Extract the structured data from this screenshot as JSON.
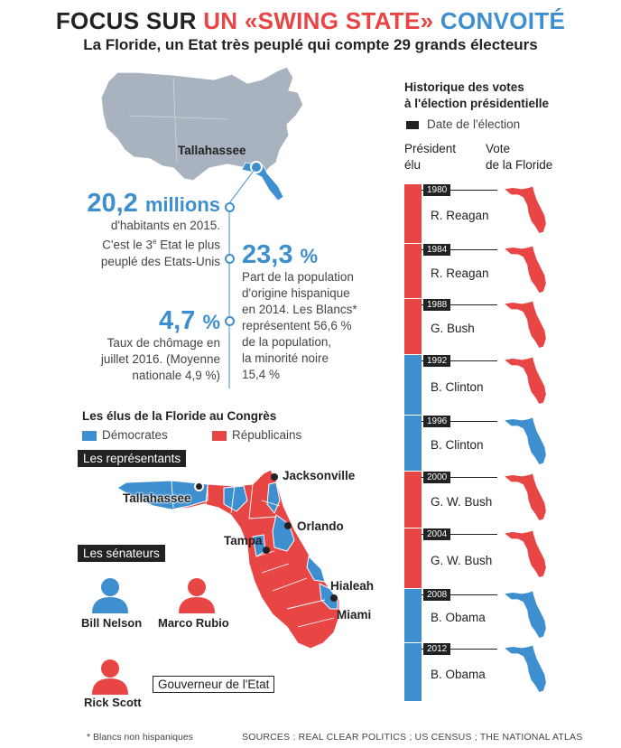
{
  "header": {
    "title_part1": "FOCUS SUR ",
    "title_part2": "UN «SWING STATE»",
    "title_part3": " CONVOITÉ",
    "subtitle": "La Floride, un Etat très peuplé qui compte 29 grands électeurs"
  },
  "colors": {
    "democrat": "#3d8fd0",
    "republican": "#e84545",
    "us_map": "#a9b3bf",
    "dark": "#222222"
  },
  "top_map": {
    "capital_label": "Tallahassee"
  },
  "stats": {
    "population": {
      "value": "20,2",
      "unit": "millions",
      "line1": "d'habitants en 2015.",
      "line2_prefix": "C'est le 3",
      "line2_sup": "e",
      "line2_suffix": " Etat le plus",
      "line3": "peuplé des Etats-Unis"
    },
    "hispanic": {
      "value": "23,3",
      "unit": "%",
      "lines": [
        "Part de la population",
        "d'origine hispanique",
        "en 2014. Les Blancs*",
        "représentent 56,6 %",
        "de la population,",
        "la minorité noire",
        "15,4 %"
      ]
    },
    "unemployment": {
      "value": "4,7",
      "unit": "%",
      "lines": [
        "Taux de chômage en",
        "juillet 2016. (Moyenne",
        "nationale 4,9 %)"
      ]
    }
  },
  "congress": {
    "title": "Les élus de la Floride au Congrès",
    "legend": {
      "democrats": "Démocrates",
      "republicans": "Républicains"
    },
    "representatives_label": "Les représentants",
    "senators_label": "Les sénateurs",
    "senators": [
      {
        "name": "Bill Nelson",
        "party": "democrat",
        "icon": "person-icon"
      },
      {
        "name": "Marco Rubio",
        "party": "republican",
        "icon": "person-icon"
      }
    ],
    "governor": {
      "name": "Rick Scott",
      "party": "republican",
      "label": "Gouverneur de l'Etat"
    },
    "cities": [
      "Jacksonville",
      "Tallahassee",
      "Orlando",
      "Tampa",
      "Hialeah",
      "Miami"
    ]
  },
  "history": {
    "title_line1": "Historique des votes",
    "title_line2": "à l'élection présidentielle",
    "legend_date": "Date de l'élection",
    "col_president_line1": "Président",
    "col_president_line2": "élu",
    "col_vote_line1": "Vote",
    "col_vote_line2": "de la Floride",
    "elections": [
      {
        "year": "1980",
        "president": "R. Reagan",
        "party": "republican",
        "florida_vote": "republican"
      },
      {
        "year": "1984",
        "president": "R. Reagan",
        "party": "republican",
        "florida_vote": "republican"
      },
      {
        "year": "1988",
        "president": "G. Bush",
        "party": "republican",
        "florida_vote": "republican"
      },
      {
        "year": "1992",
        "president": "B. Clinton",
        "party": "democrat",
        "florida_vote": "republican"
      },
      {
        "year": "1996",
        "president": "B. Clinton",
        "party": "democrat",
        "florida_vote": "democrat"
      },
      {
        "year": "2000",
        "president": "G. W. Bush",
        "party": "republican",
        "florida_vote": "republican"
      },
      {
        "year": "2004",
        "president": "G. W. Bush",
        "party": "republican",
        "florida_vote": "republican"
      },
      {
        "year": "2008",
        "president": "B. Obama",
        "party": "democrat",
        "florida_vote": "democrat"
      },
      {
        "year": "2012",
        "president": "B. Obama",
        "party": "democrat",
        "florida_vote": "democrat"
      }
    ]
  },
  "footer": {
    "footnote": "* Blancs non hispaniques",
    "sources": "SOURCES : REAL CLEAR POLITICS ; US CENSUS ; THE NATIONAL ATLAS"
  }
}
